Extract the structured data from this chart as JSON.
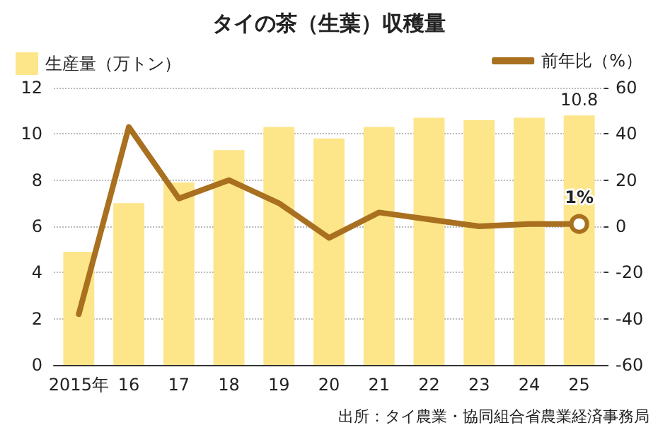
{
  "chart_data": {
    "type": "bar",
    "title": "タイの茶（生葉）収穫量",
    "categories": [
      "2015年",
      "16",
      "17",
      "18",
      "19",
      "20",
      "21",
      "22",
      "23",
      "24",
      "25"
    ],
    "series": [
      {
        "name": "生産量（万トン）",
        "color": "#fde58a",
        "values": [
          4.9,
          7.0,
          7.9,
          9.3,
          10.3,
          9.8,
          10.3,
          10.7,
          10.6,
          10.7,
          10.8
        ],
        "value_labels": [
          null,
          null,
          null,
          null,
          null,
          null,
          null,
          null,
          null,
          null,
          "10.8"
        ]
      },
      {
        "name": "前年比（%）",
        "type": "line",
        "axis": "y2",
        "color": "#a8701f",
        "values": [
          -38,
          43,
          12,
          20,
          10,
          -5,
          6,
          3,
          0,
          1,
          1
        ],
        "value_labels": [
          null,
          null,
          null,
          null,
          null,
          null,
          null,
          null,
          null,
          null,
          "1%"
        ]
      }
    ],
    "ylim": [
      0,
      12
    ],
    "yticks": [
      0,
      2,
      4,
      6,
      8,
      10,
      12
    ],
    "y2lim": [
      -60,
      60
    ],
    "y2ticks": [
      -60,
      -40,
      -20,
      0,
      20,
      40,
      60
    ],
    "grid": "y",
    "legend": "top",
    "marker": "none",
    "line_style": "solid",
    "annotations": [
      "出所：タイ農業・協同組合省農業経済事務局"
    ]
  }
}
